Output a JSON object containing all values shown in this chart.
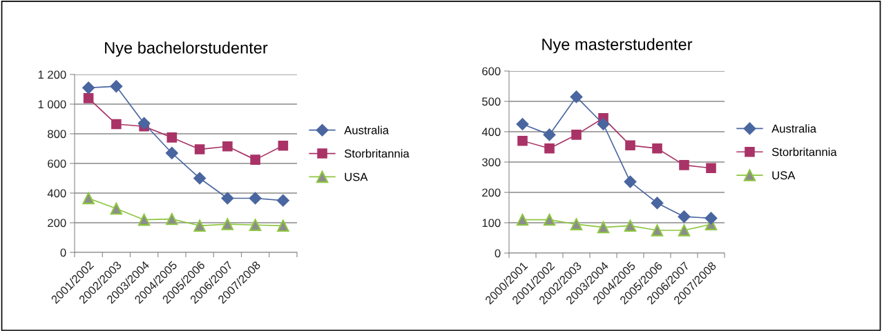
{
  "chart_data": [
    {
      "type": "line",
      "title": "Nye bachelorstudenter",
      "categories": [
        "2001/2002",
        "2002/2003",
        "2003/2004",
        "2004/2005",
        "2005/2006",
        "2006/2007",
        "2007/2008",
        null
      ],
      "series": [
        {
          "name": "Australia",
          "color": "#4a66a0",
          "marker": "diamond",
          "values": [
            1110,
            1120,
            870,
            670,
            500,
            365,
            365,
            350
          ]
        },
        {
          "name": "Storbritannia",
          "color": "#a93366",
          "marker": "square",
          "values": [
            1040,
            865,
            850,
            775,
            695,
            715,
            625,
            720
          ]
        },
        {
          "name": "USA",
          "color": "#8cc63f",
          "marker": "triangle",
          "values": [
            365,
            295,
            220,
            225,
            180,
            190,
            185,
            180
          ]
        }
      ],
      "ylim": [
        0,
        1200
      ],
      "yticks": [
        0,
        200,
        400,
        600,
        800,
        {
          "value": 1000,
          "label": "1 000"
        },
        {
          "value": 1200,
          "label": "1 200"
        }
      ],
      "grid": "y",
      "legend": "right"
    },
    {
      "type": "line",
      "title": "Nye masterstudenter",
      "categories": [
        "2000/2001",
        "2001/2002",
        "2002/2003",
        "2003/2004",
        "2004/2005",
        "2005/2006",
        "2006/2007",
        "2007/2008"
      ],
      "series": [
        {
          "name": "Australia",
          "color": "#4a66a0",
          "marker": "diamond",
          "values": [
            425,
            390,
            515,
            425,
            235,
            165,
            120,
            115
          ]
        },
        {
          "name": "Storbritannia",
          "color": "#a93366",
          "marker": "square",
          "values": [
            370,
            345,
            390,
            445,
            355,
            345,
            290,
            280
          ]
        },
        {
          "name": "USA",
          "color": "#8cc63f",
          "marker": "triangle",
          "values": [
            110,
            110,
            95,
            85,
            90,
            75,
            75,
            95
          ]
        }
      ],
      "ylim": [
        0,
        600
      ],
      "yticks": [
        0,
        100,
        200,
        300,
        400,
        500,
        600
      ],
      "grid": "y",
      "legend": "right"
    }
  ]
}
